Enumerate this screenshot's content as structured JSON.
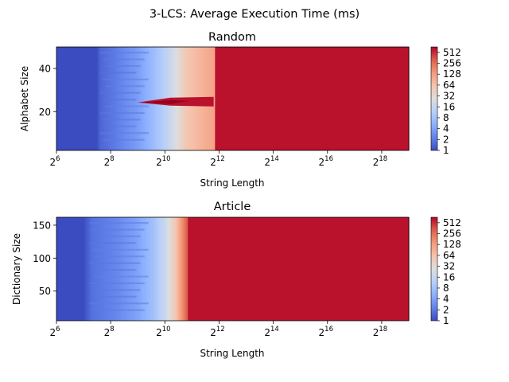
{
  "suptitle": "3-LCS: Average Execution Time (ms)",
  "colormap": "coolwarm",
  "colorbar_ticks": [
    "1",
    "2",
    "4",
    "8",
    "16",
    "32",
    "64",
    "128",
    "256",
    "512"
  ],
  "chart_data": [
    {
      "type": "heatmap",
      "title": "Random",
      "xlabel": "String Length",
      "ylabel": "Alphabet Size",
      "x_scale": "log2",
      "x_range_exponent": [
        6,
        19
      ],
      "x_tick_exponents": [
        6,
        8,
        10,
        12,
        14,
        16,
        18
      ],
      "ylim": [
        2,
        50
      ],
      "y_ticks": [
        "20",
        "40"
      ],
      "color_scale": "log2",
      "color_range_ms": [
        1,
        1024
      ],
      "profile": [
        {
          "x_exp": 6.0,
          "ms": 1
        },
        {
          "x_exp": 7.5,
          "ms": 1
        },
        {
          "x_exp": 7.6,
          "ms": 1.5
        },
        {
          "x_exp": 8.2,
          "ms": 2.2
        },
        {
          "x_exp": 9.0,
          "ms": 4
        },
        {
          "x_exp": 9.6,
          "ms": 8
        },
        {
          "x_exp": 10.0,
          "ms": 14
        },
        {
          "x_exp": 10.4,
          "ms": 30
        },
        {
          "x_exp": 10.8,
          "ms": 70
        },
        {
          "x_exp": 11.5,
          "ms": 120
        },
        {
          "x_exp": 11.85,
          "ms": 150
        },
        {
          "x_exp": 11.86,
          "ms": 900
        },
        {
          "x_exp": 19.0,
          "ms": 900
        }
      ],
      "anomaly": {
        "y_value": 25,
        "x_exp_start": 9.0,
        "x_exp_end": 11.8,
        "ms": 900
      }
    },
    {
      "type": "heatmap",
      "title": "Article",
      "xlabel": "String Length",
      "ylabel": "Dictionary Size",
      "x_scale": "log2",
      "x_range_exponent": [
        6,
        19
      ],
      "x_tick_exponents": [
        6,
        8,
        10,
        12,
        14,
        16,
        18
      ],
      "ylim": [
        5,
        162
      ],
      "y_ticks": [
        "50",
        "100",
        "150"
      ],
      "color_scale": "log2",
      "color_range_ms": [
        1,
        1024
      ],
      "profile": [
        {
          "x_exp": 6.0,
          "ms": 1
        },
        {
          "x_exp": 7.0,
          "ms": 1
        },
        {
          "x_exp": 7.3,
          "ms": 1.8
        },
        {
          "x_exp": 8.2,
          "ms": 2.6
        },
        {
          "x_exp": 9.0,
          "ms": 4.5
        },
        {
          "x_exp": 9.6,
          "ms": 9
        },
        {
          "x_exp": 10.0,
          "ms": 20
        },
        {
          "x_exp": 10.4,
          "ms": 70
        },
        {
          "x_exp": 10.6,
          "ms": 180
        },
        {
          "x_exp": 10.85,
          "ms": 500
        },
        {
          "x_exp": 10.86,
          "ms": 900
        },
        {
          "x_exp": 19.0,
          "ms": 900
        }
      ]
    }
  ]
}
